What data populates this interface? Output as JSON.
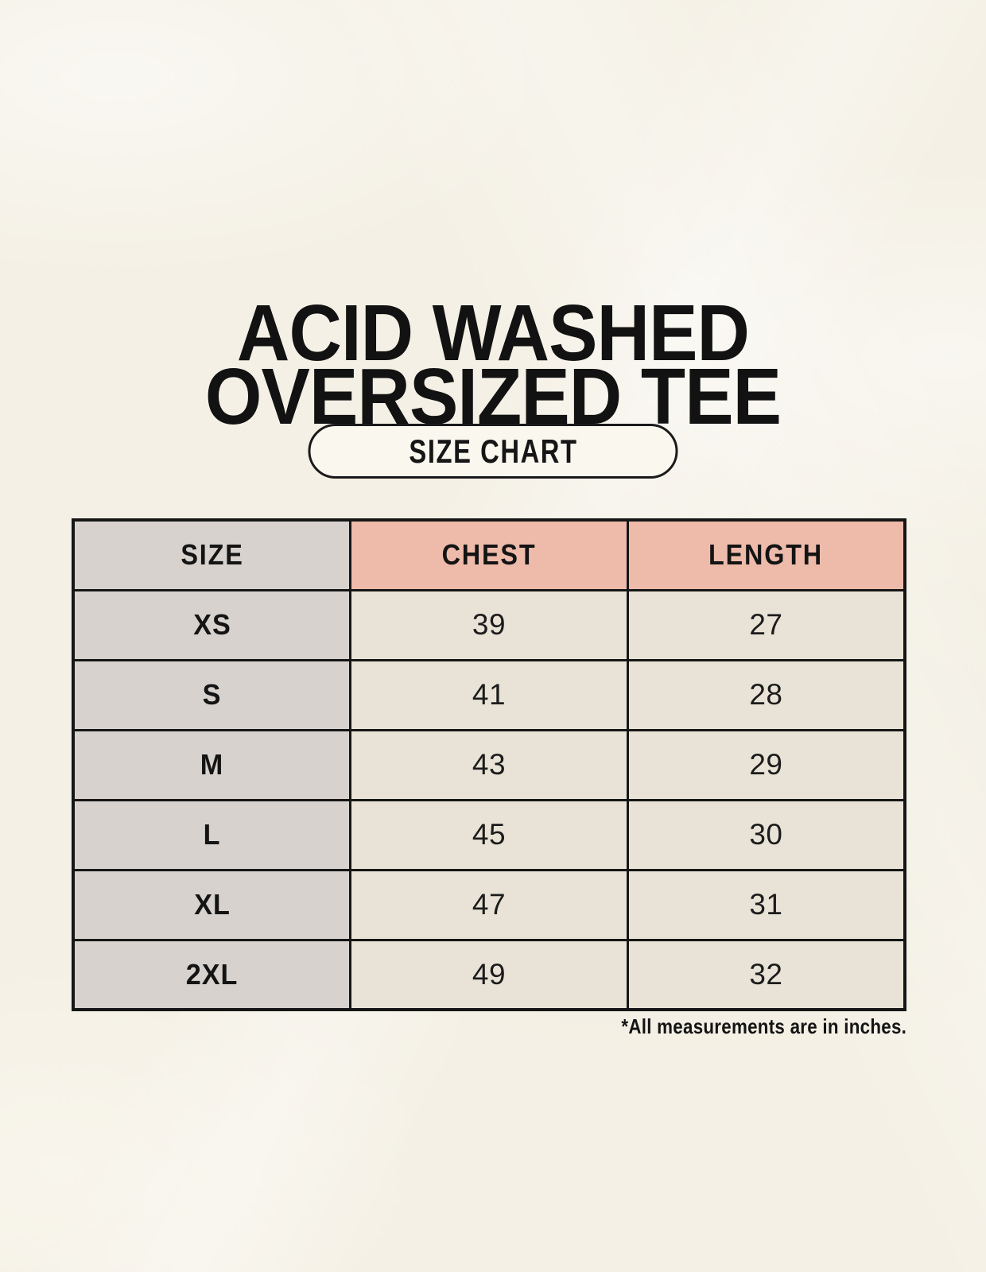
{
  "header": {
    "title_line1": "ACID WASHED",
    "title_line2": "OVERSIZED TEE",
    "badge_label": "SIZE CHART"
  },
  "footnote": "*All measurements are in inches.",
  "chart_data": {
    "type": "table",
    "title": "ACID WASHED OVERSIZED TEE",
    "subtitle": "SIZE CHART",
    "columns": [
      "SIZE",
      "CHEST",
      "LENGTH"
    ],
    "units_note": "*All measurements are in inches.",
    "rows": [
      {
        "size": "XS",
        "chest": 39,
        "length": 27
      },
      {
        "size": "S",
        "chest": 41,
        "length": 28
      },
      {
        "size": "M",
        "chest": 43,
        "length": 29
      },
      {
        "size": "L",
        "chest": 45,
        "length": 30
      },
      {
        "size": "XL",
        "chest": 47,
        "length": 31
      },
      {
        "size": "2XL",
        "chest": 49,
        "length": 32
      }
    ]
  },
  "colors": {
    "page_background": "#f4f0e5",
    "size_column_bg": "#d7d2ce",
    "data_cell_bg": "#e9e3d7",
    "header_accent_bg": "#eebbab",
    "table_border": "#161616",
    "text": "#141414"
  }
}
